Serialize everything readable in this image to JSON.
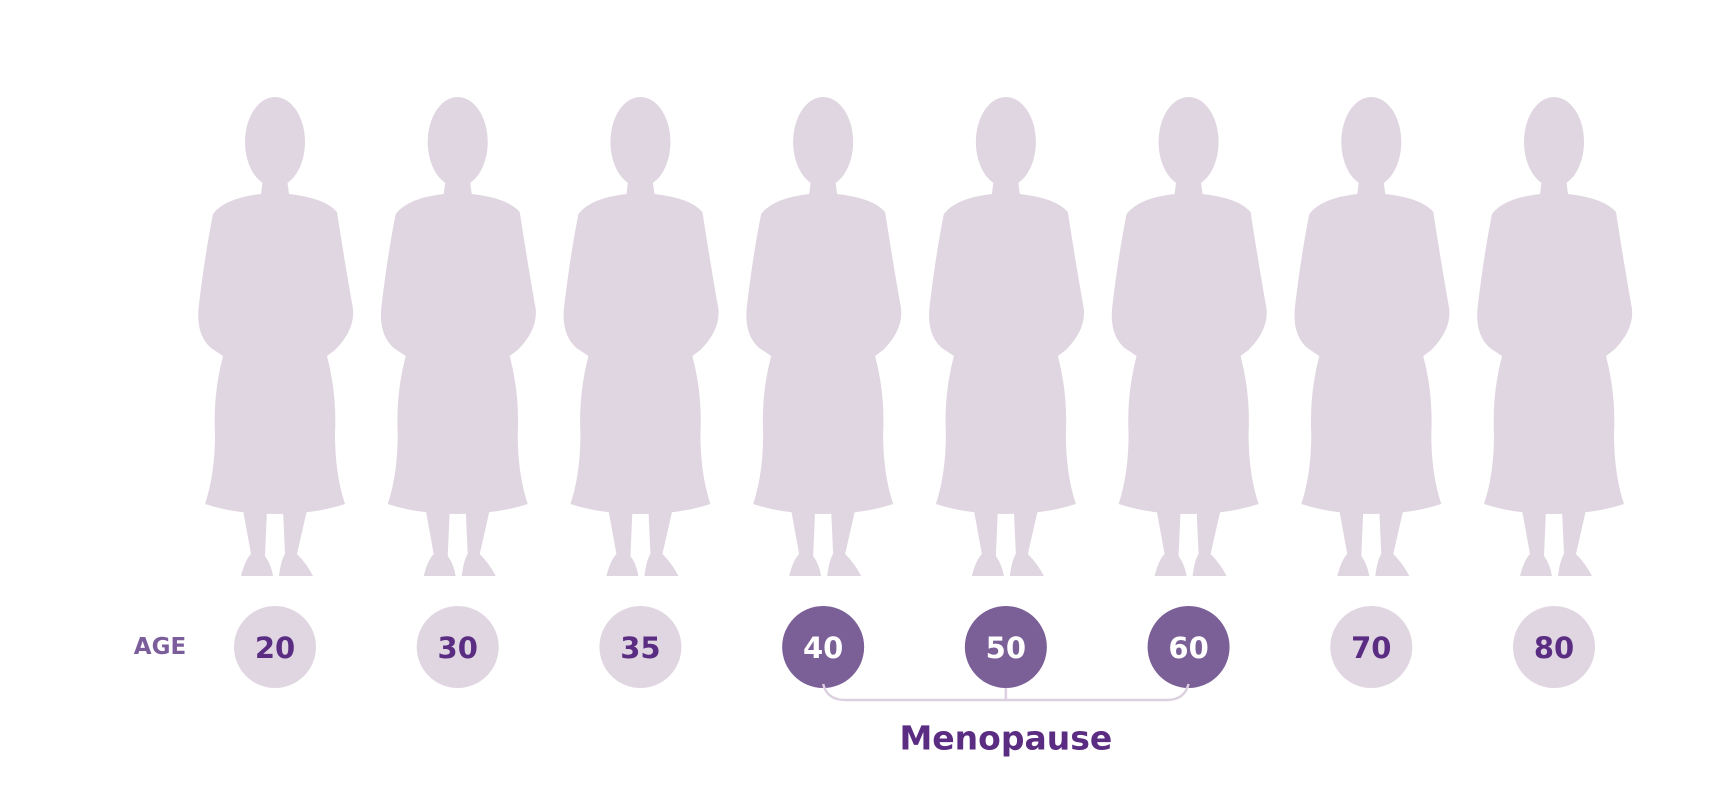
{
  "label": "AGE",
  "ages": [
    {
      "age": 20,
      "highlighted": false
    },
    {
      "age": 30,
      "highlighted": false
    },
    {
      "age": 35,
      "highlighted": false
    },
    {
      "age": 40,
      "highlighted": true
    },
    {
      "age": 50,
      "highlighted": true
    },
    {
      "age": 60,
      "highlighted": true
    },
    {
      "age": 70,
      "highlighted": false
    },
    {
      "age": 80,
      "highlighted": false
    }
  ],
  "bracket_label": "Menopause"
}
